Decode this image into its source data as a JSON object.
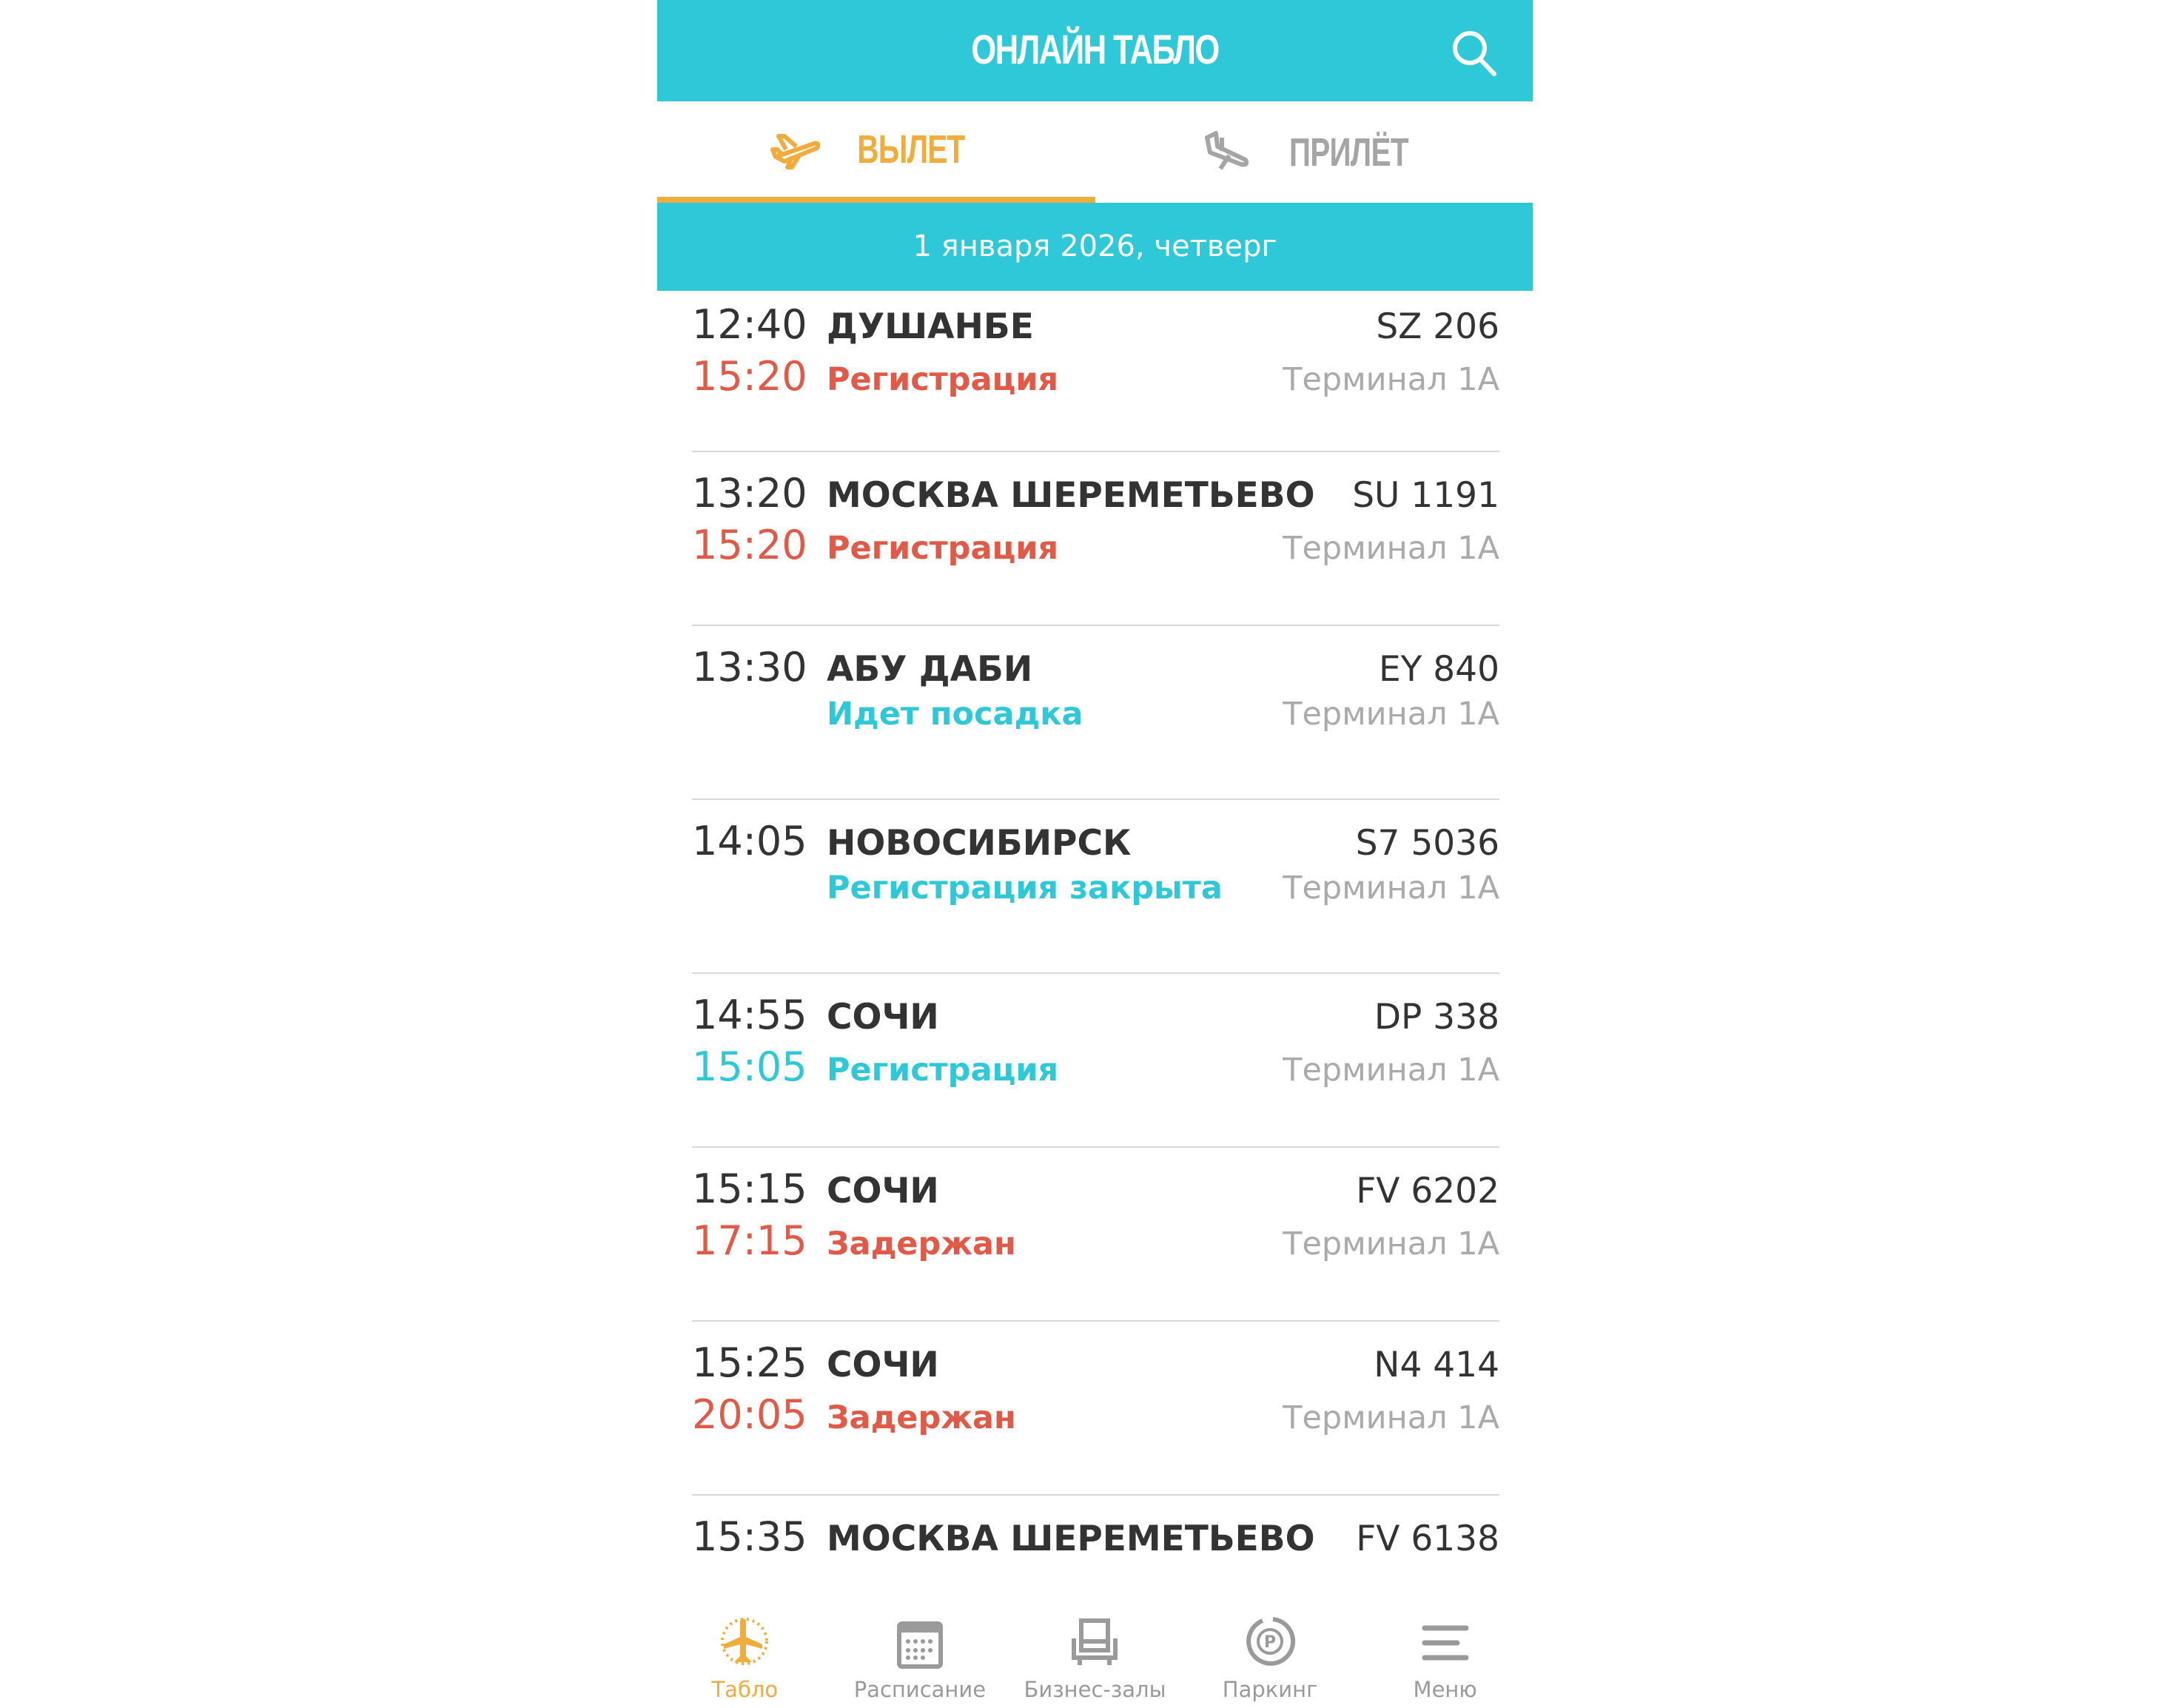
{
  "header": {
    "title": "ОНЛАЙН ТАБЛО",
    "search_icon": "search-icon"
  },
  "tabs": [
    {
      "label": "ВЫЛЕТ",
      "icon": "plane-takeoff-icon",
      "active": true
    },
    {
      "label": "ПРИЛЁТ",
      "icon": "plane-landing-icon",
      "active": false
    }
  ],
  "date": "1 января 2026, четверг",
  "colors": {
    "accent": "#2ec8d8",
    "active": "#f0ac3c",
    "alert": "#e05a47",
    "muted": "#aaaaaa"
  },
  "flights": [
    {
      "time": "12:40",
      "new_time": "15:20",
      "new_time_color": "red",
      "destination": "ДУШАНБЕ",
      "flight": "SZ 206",
      "status": "Регистрация",
      "status_color": "red",
      "terminal": "Терминал 1А"
    },
    {
      "time": "13:20",
      "new_time": "15:20",
      "new_time_color": "red",
      "destination": "МОСКВА ШЕРЕМЕТЬЕВО",
      "flight": "SU 1191",
      "status": "Регистрация",
      "status_color": "red",
      "terminal": "Терминал 1А"
    },
    {
      "time": "13:30",
      "new_time": "",
      "new_time_color": "",
      "destination": "АБУ ДАБИ",
      "flight": "EY 840",
      "status": "Идет посадка",
      "status_color": "teal",
      "terminal": "Терминал 1А"
    },
    {
      "time": "14:05",
      "new_time": "",
      "new_time_color": "",
      "destination": "НОВОСИБИРСК",
      "flight": "S7 5036",
      "status": "Регистрация закрыта",
      "status_color": "teal",
      "terminal": "Терминал 1А"
    },
    {
      "time": "14:55",
      "new_time": "15:05",
      "new_time_color": "teal",
      "destination": "СОЧИ",
      "flight": "DP 338",
      "status": "Регистрация",
      "status_color": "teal",
      "terminal": "Терминал 1А"
    },
    {
      "time": "15:15",
      "new_time": "17:15",
      "new_time_color": "red",
      "destination": "СОЧИ",
      "flight": "FV 6202",
      "status": "Задержан",
      "status_color": "red",
      "terminal": "Терминал 1А"
    },
    {
      "time": "15:25",
      "new_time": "20:05",
      "new_time_color": "red",
      "destination": "СОЧИ",
      "flight": "N4 414",
      "status": "Задержан",
      "status_color": "red",
      "terminal": "Терминал 1А"
    },
    {
      "time": "15:35",
      "new_time": "",
      "new_time_color": "",
      "destination": "МОСКВА ШЕРЕМЕТЬЕВО",
      "flight": "FV 6138",
      "status": "",
      "status_color": "",
      "terminal": ""
    }
  ],
  "nav": [
    {
      "label": "Табло",
      "icon": "board-icon",
      "active": true
    },
    {
      "label": "Расписание",
      "icon": "calendar-icon",
      "active": false
    },
    {
      "label": "Бизнес-залы",
      "icon": "armchair-icon",
      "active": false
    },
    {
      "label": "Паркинг",
      "icon": "parking-icon",
      "active": false
    },
    {
      "label": "Меню",
      "icon": "menu-icon",
      "active": false
    }
  ]
}
